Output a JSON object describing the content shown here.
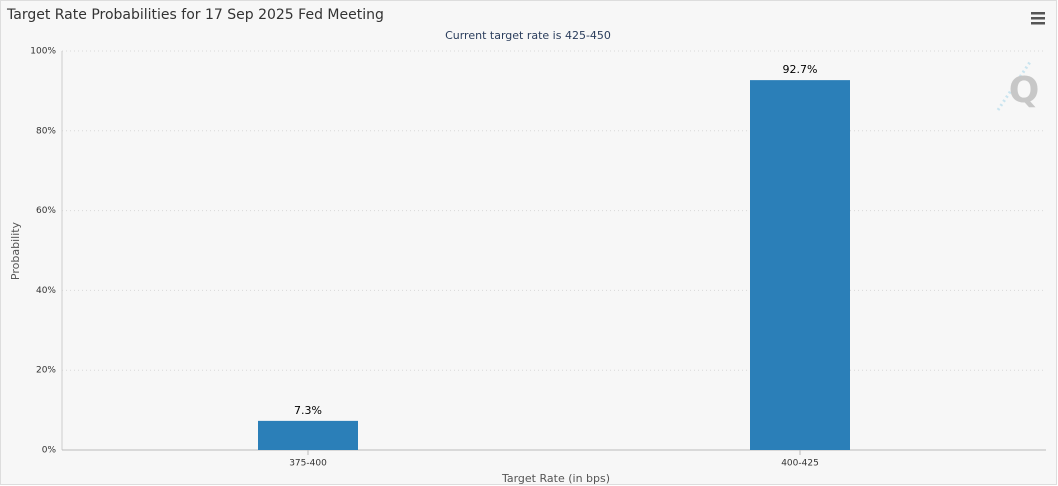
{
  "chart_data": {
    "type": "bar",
    "title": "Target Rate Probabilities for 17 Sep 2025 Fed Meeting",
    "subtitle": "Current target rate is 425-450",
    "x_label": "Target Rate (in bps)",
    "y_label": "Probability",
    "categories": [
      "375-400",
      "400-425"
    ],
    "values": [
      7.3,
      92.7
    ],
    "value_labels": [
      "7.3%",
      "92.7%"
    ],
    "color": "#2b7fb8",
    "ylim": [
      0,
      100
    ],
    "yticks": [
      {
        "value": 0,
        "label": "0%"
      },
      {
        "value": 20,
        "label": "20%"
      },
      {
        "value": 40,
        "label": "40%"
      },
      {
        "value": 60,
        "label": "60%"
      },
      {
        "value": 80,
        "label": "80%"
      },
      {
        "value": 100,
        "label": "100%"
      }
    ],
    "grid": true
  }
}
